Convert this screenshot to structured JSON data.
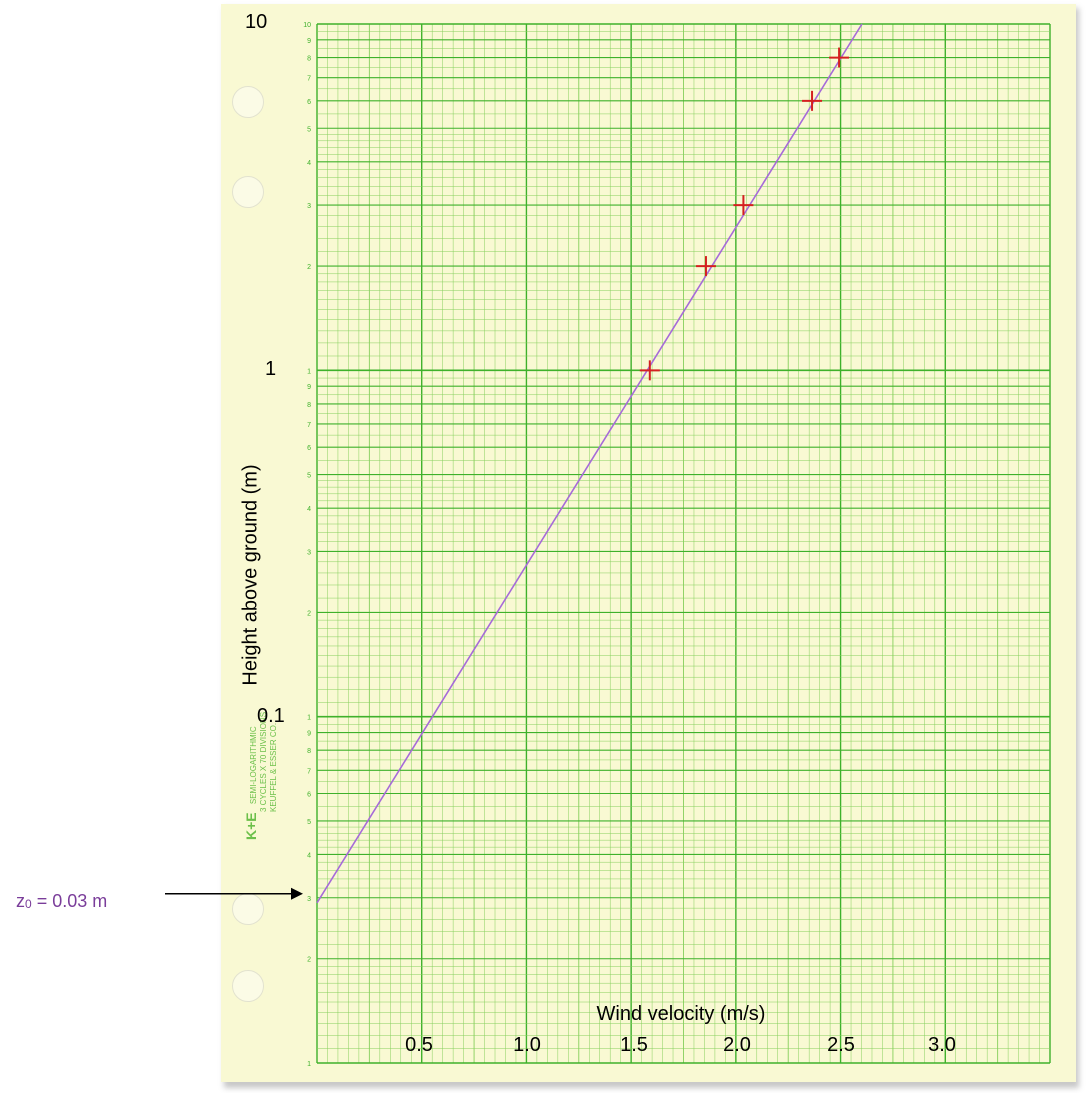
{
  "chart_data": {
    "type": "scatter",
    "title": "",
    "xlabel": "Wind velocity (m/s)",
    "ylabel": "Height above ground (m)",
    "y_scale": "log",
    "ylim": [
      0.01,
      10
    ],
    "xlim": [
      0,
      3.5
    ],
    "grid": true,
    "x_tick_labels": [
      "0.5",
      "1.0",
      "1.5",
      "2.0",
      "2.5",
      "3.0"
    ],
    "x_ticks": [
      0.5,
      1.0,
      1.5,
      2.0,
      2.5,
      3.0
    ],
    "y_tick_labels": [
      "10",
      "1",
      "0.1"
    ],
    "y_ticks": [
      10,
      1,
      0.1
    ],
    "series": [
      {
        "kind": "points",
        "marker": "+",
        "color": "#d42020",
        "x": [
          1.6,
          1.87,
          2.05,
          2.38,
          2.51
        ],
        "y": [
          1.0,
          2.0,
          3.0,
          6.0,
          8.0
        ]
      },
      {
        "kind": "fit_line",
        "color": "#a66ad9",
        "x": [
          0.0,
          2.62
        ],
        "y": [
          0.029,
          10.0
        ]
      }
    ],
    "annotations": [
      {
        "text": "z0 = 0.03 m",
        "points_to_y": 0.03,
        "color": "#7a3d9a"
      }
    ]
  },
  "annotation": {
    "prefix": "z",
    "sub": "0",
    "suffix": " = 0.03 m"
  },
  "paper": {
    "brand_logo": "K+E",
    "brand_lines": [
      "SEMI-LOGARITHMIC",
      "3 CYCLES X 70 DIVISIONS",
      "KEUFFEL & ESSER CO."
    ],
    "grid_color": "#3fb12b",
    "minor_grid_color": "#86cf5c"
  }
}
